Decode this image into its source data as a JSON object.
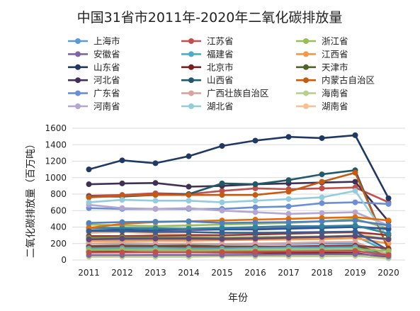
{
  "chart_data": {
    "type": "line",
    "title": "中国31省市2011年-2020年二氧化碳排放量",
    "xlabel": "年份",
    "ylabel": "二氧化碳排放量（百万吨）",
    "ylim": [
      0,
      1600
    ],
    "yticks": [
      0,
      200,
      400,
      600,
      800,
      1000,
      1200,
      1400,
      1600
    ],
    "x": [
      "2011",
      "2012",
      "2013",
      "2014",
      "2015",
      "2016",
      "2017",
      "2018",
      "2019",
      "2020"
    ],
    "grid": true,
    "legend_position": "top",
    "series": [
      {
        "name": "上海市",
        "color": "#5b9bd5",
        "values": [
          200,
          200,
          195,
          195,
          190,
          195,
          195,
          200,
          200,
          30
        ]
      },
      {
        "name": "江苏省",
        "color": "#c0504d",
        "values": [
          780,
          790,
          810,
          800,
          840,
          870,
          860,
          870,
          880,
          700
        ]
      },
      {
        "name": "浙江省",
        "color": "#9bbb59",
        "values": [
          430,
          420,
          410,
          420,
          430,
          440,
          450,
          470,
          500,
          380
        ]
      },
      {
        "name": "安徽省",
        "color": "#8064a2",
        "values": [
          330,
          340,
          350,
          360,
          370,
          380,
          390,
          400,
          410,
          370
        ]
      },
      {
        "name": "福建省",
        "color": "#4bacc6",
        "values": [
          250,
          245,
          240,
          245,
          250,
          255,
          265,
          275,
          290,
          100
        ]
      },
      {
        "name": "江西省",
        "color": "#f79646",
        "values": [
          230,
          230,
          235,
          235,
          240,
          245,
          250,
          255,
          265,
          200
        ]
      },
      {
        "name": "山东省",
        "color": "#1f3864",
        "values": [
          1100,
          1210,
          1175,
          1260,
          1385,
          1450,
          1495,
          1480,
          1515,
          750
        ]
      },
      {
        "name": "北京市",
        "color": "#7a1e1e",
        "values": [
          100,
          100,
          95,
          95,
          90,
          90,
          85,
          85,
          85,
          30
        ]
      },
      {
        "name": "天津市",
        "color": "#4f6228",
        "values": [
          170,
          175,
          170,
          175,
          165,
          165,
          160,
          165,
          170,
          70
        ]
      },
      {
        "name": "河北省",
        "color": "#403152",
        "values": [
          920,
          930,
          935,
          890,
          900,
          920,
          930,
          940,
          950,
          470
        ]
      },
      {
        "name": "山西省",
        "color": "#215967",
        "values": [
          770,
          770,
          790,
          800,
          930,
          920,
          970,
          1040,
          1090,
          120
        ]
      },
      {
        "name": "内蒙古自治区",
        "color": "#c55a11",
        "values": [
          760,
          780,
          790,
          790,
          790,
          790,
          830,
          950,
          1060,
          130
        ]
      },
      {
        "name": "广东省",
        "color": "#6b8fd4",
        "values": [
          630,
          620,
          620,
          620,
          620,
          640,
          650,
          690,
          700,
          680
        ]
      },
      {
        "name": "广西壮族自治区",
        "color": "#d9a3a0",
        "values": [
          200,
          205,
          200,
          200,
          195,
          200,
          205,
          215,
          220,
          60
        ]
      },
      {
        "name": "海南省",
        "color": "#b8d08e",
        "values": [
          40,
          40,
          40,
          40,
          45,
          45,
          45,
          45,
          50,
          20
        ]
      },
      {
        "name": "河南省",
        "color": "#b4a6d1",
        "values": [
          670,
          630,
          620,
          630,
          600,
          580,
          560,
          570,
          580,
          420
        ]
      },
      {
        "name": "湖北省",
        "color": "#93cddd",
        "values": [
          700,
          730,
          720,
          720,
          700,
          720,
          740,
          760,
          840,
          260
        ]
      },
      {
        "name": "湖南省",
        "color": "#fac08f",
        "values": [
          330,
          340,
          320,
          310,
          300,
          310,
          320,
          330,
          330,
          240
        ]
      },
      {
        "name": "",
        "color": "#2f5597",
        "values": [
          360,
          370,
          360,
          380,
          370,
          370,
          380,
          390,
          400,
          380
        ]
      },
      {
        "name": "",
        "color": "#943634",
        "values": [
          290,
          290,
          295,
          300,
          300,
          310,
          320,
          330,
          340,
          300
        ]
      },
      {
        "name": "",
        "color": "#76923c",
        "values": [
          270,
          275,
          275,
          275,
          270,
          275,
          280,
          285,
          295,
          260
        ]
      },
      {
        "name": "",
        "color": "#5f497a",
        "values": [
          250,
          260,
          260,
          260,
          255,
          260,
          270,
          280,
          290,
          250
        ]
      },
      {
        "name": "",
        "color": "#31859b",
        "values": [
          390,
          390,
          385,
          380,
          390,
          400,
          410,
          410,
          420,
          320
        ]
      },
      {
        "name": "",
        "color": "#e36c09",
        "values": [
          390,
          440,
          460,
          470,
          480,
          490,
          500,
          510,
          520,
          480
        ]
      },
      {
        "name": "",
        "color": "#366092",
        "values": [
          350,
          350,
          340,
          340,
          330,
          330,
          335,
          340,
          345,
          120
        ]
      },
      {
        "name": "",
        "color": "#953735",
        "values": [
          160,
          165,
          160,
          160,
          155,
          160,
          165,
          170,
          175,
          140
        ]
      },
      {
        "name": "",
        "color": "#4bacc6",
        "values": [
          140,
          145,
          145,
          140,
          140,
          145,
          150,
          150,
          155,
          40
        ]
      },
      {
        "name": "",
        "color": "#9bbb59",
        "values": [
          120,
          125,
          120,
          120,
          115,
          120,
          125,
          125,
          130,
          110
        ]
      },
      {
        "name": "",
        "color": "#8064a2",
        "values": [
          60,
          60,
          62,
          62,
          62,
          65,
          68,
          70,
          72,
          50
        ]
      },
      {
        "name": "",
        "color": "#c0504d",
        "values": [
          90,
          92,
          95,
          95,
          96,
          100,
          102,
          105,
          110,
          60
        ]
      },
      {
        "name": "",
        "color": "#4f81bd",
        "values": [
          450,
          460,
          465,
          470,
          450,
          455,
          460,
          470,
          480,
          420
        ]
      }
    ]
  }
}
